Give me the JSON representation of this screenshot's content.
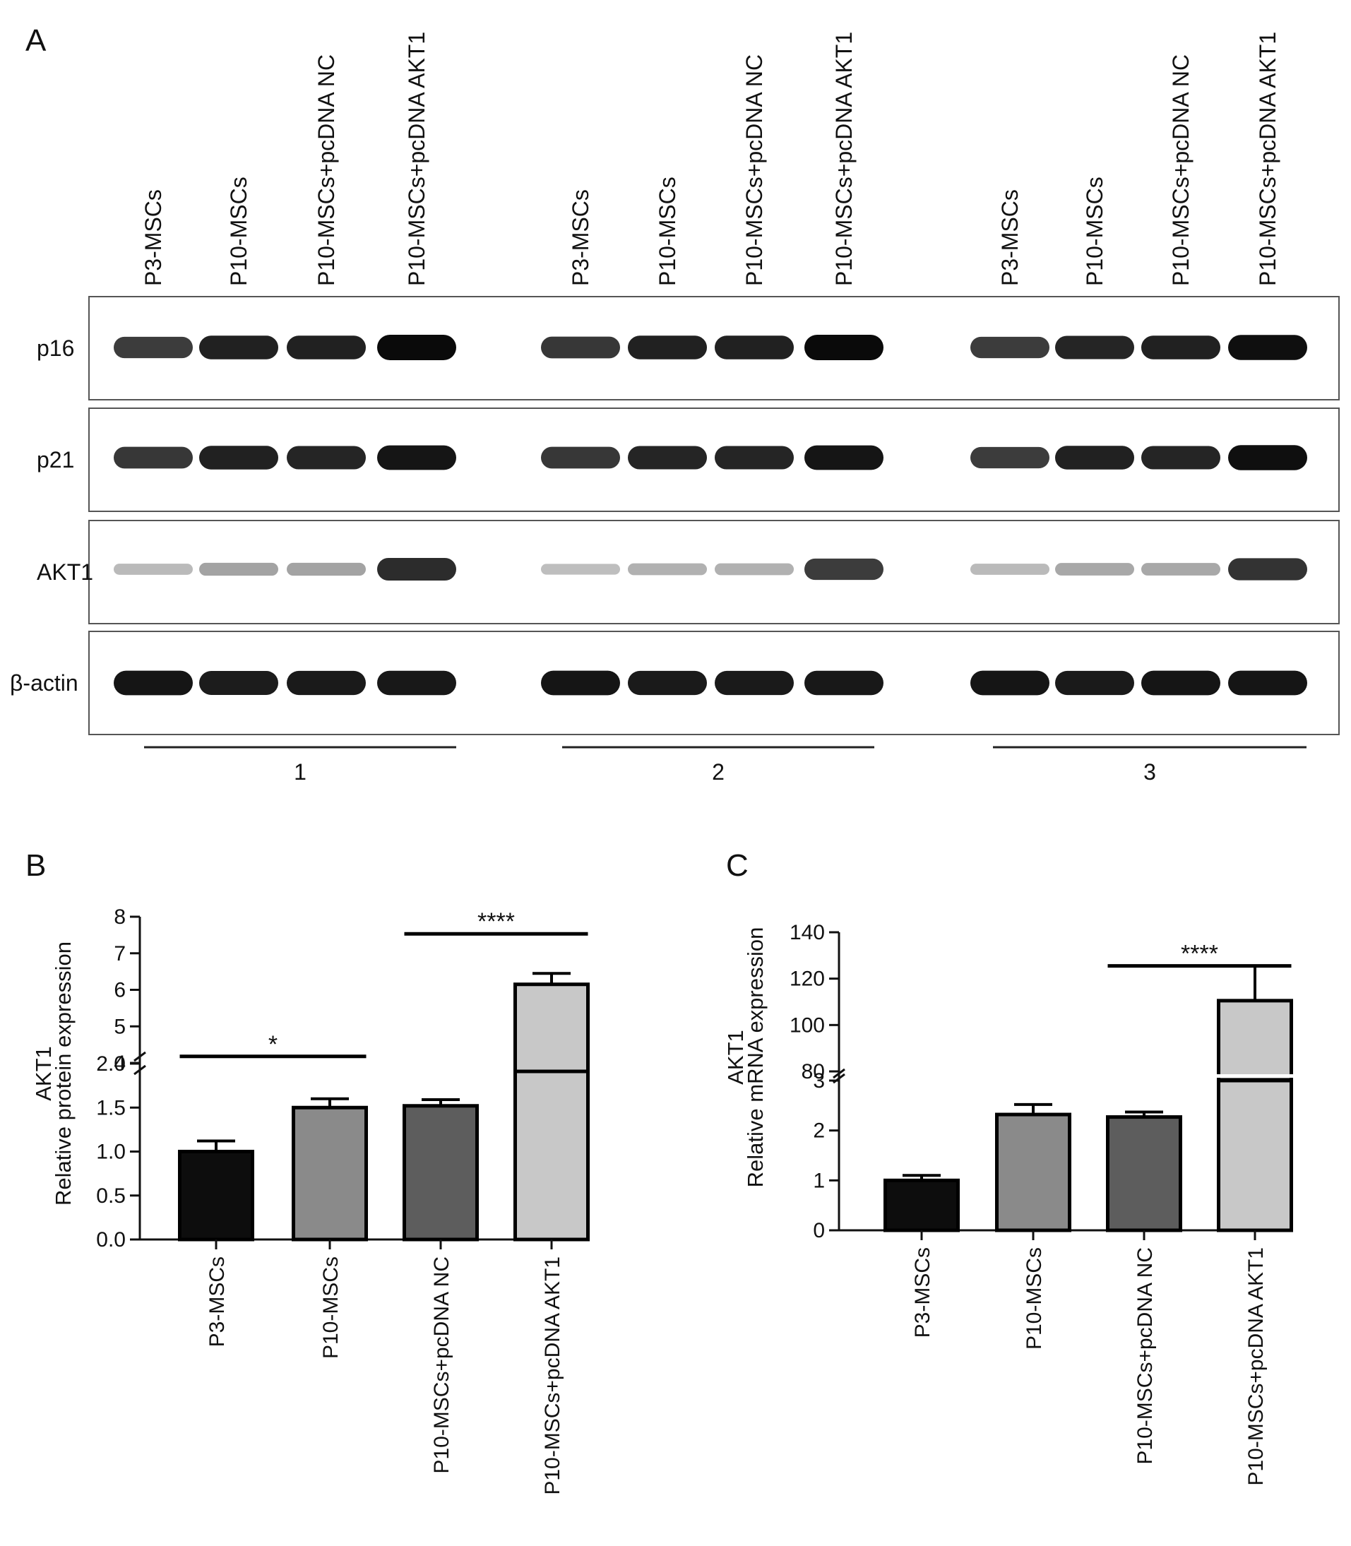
{
  "panel_a": {
    "letter": "A",
    "lane_labels": [
      "P3-MSCs",
      "P10-MSCs",
      "P10-MSCs+pcDNA NC",
      "P10-MSCs+pcDNA AKT1"
    ],
    "blots": [
      {
        "label": "p16",
        "intensities": [
          [
            0.78,
            0.9,
            0.9,
            1.0
          ],
          [
            0.8,
            0.9,
            0.9,
            1.0
          ],
          [
            0.78,
            0.88,
            0.9,
            0.98
          ]
        ]
      },
      {
        "label": "p21",
        "intensities": [
          [
            0.8,
            0.9,
            0.88,
            0.95
          ],
          [
            0.8,
            0.88,
            0.88,
            0.95
          ],
          [
            0.78,
            0.9,
            0.88,
            0.98
          ]
        ]
      },
      {
        "label": "AKT1",
        "intensities": [
          [
            0.22,
            0.32,
            0.32,
            0.85
          ],
          [
            0.2,
            0.26,
            0.26,
            0.78
          ],
          [
            0.22,
            0.3,
            0.3,
            0.82
          ]
        ]
      },
      {
        "label": "β-actin",
        "intensities": [
          [
            0.95,
            0.92,
            0.93,
            0.94
          ],
          [
            0.95,
            0.93,
            0.93,
            0.94
          ],
          [
            0.95,
            0.93,
            0.95,
            0.95
          ]
        ]
      }
    ],
    "group_labels": [
      "1",
      "2",
      "3"
    ]
  },
  "chart_data": [
    {
      "panel": "B",
      "type": "bar",
      "ylabel_line1": "AKT1",
      "ylabel_line2": "Relative protein expression",
      "categories": [
        "P3-MSCs",
        "P10-MSCs",
        "P10-MSCs+pcDNA NC",
        "P10-MSCs+pcDNA AKT1"
      ],
      "values": [
        1.0,
        1.5,
        1.52,
        6.15
      ],
      "errors": [
        0.12,
        0.1,
        0.07,
        0.3
      ],
      "colors": [
        "#0d0d0d",
        "#8a8a8a",
        "#5d5d5d",
        "#c8c8c8"
      ],
      "axis_break": true,
      "lower_ticks": [
        "0.0",
        "0.5",
        "1.0",
        "1.5",
        "2.0"
      ],
      "upper_ticks": [
        "4",
        "5",
        "6",
        "7",
        "8"
      ],
      "lower_range": [
        0,
        2
      ],
      "upper_range": [
        4,
        8
      ],
      "significance": [
        {
          "from": 0,
          "to": 1,
          "label": "*"
        },
        {
          "from": 2,
          "to": 3,
          "label": "****"
        }
      ]
    },
    {
      "panel": "C",
      "type": "bar",
      "ylabel_line1": "AKT1",
      "ylabel_line2": "Relative mRNA expression",
      "categories": [
        "P3-MSCs",
        "P10-MSCs",
        "P10-MSCs+pcDNA NC",
        "P10-MSCs+pcDNA AKT1"
      ],
      "values": [
        1.0,
        2.32,
        2.27,
        110.5
      ],
      "errors": [
        0.1,
        0.2,
        0.1,
        15.0
      ],
      "colors": [
        "#0d0d0d",
        "#8a8a8a",
        "#5d5d5d",
        "#c8c8c8"
      ],
      "axis_break": true,
      "lower_ticks": [
        "0",
        "1",
        "2",
        "3"
      ],
      "upper_ticks": [
        "80",
        "100",
        "120",
        "140"
      ],
      "lower_range": [
        0,
        3
      ],
      "upper_range": [
        80,
        140
      ],
      "significance": [
        {
          "from": 2,
          "to": 3,
          "label": "****"
        }
      ]
    }
  ]
}
